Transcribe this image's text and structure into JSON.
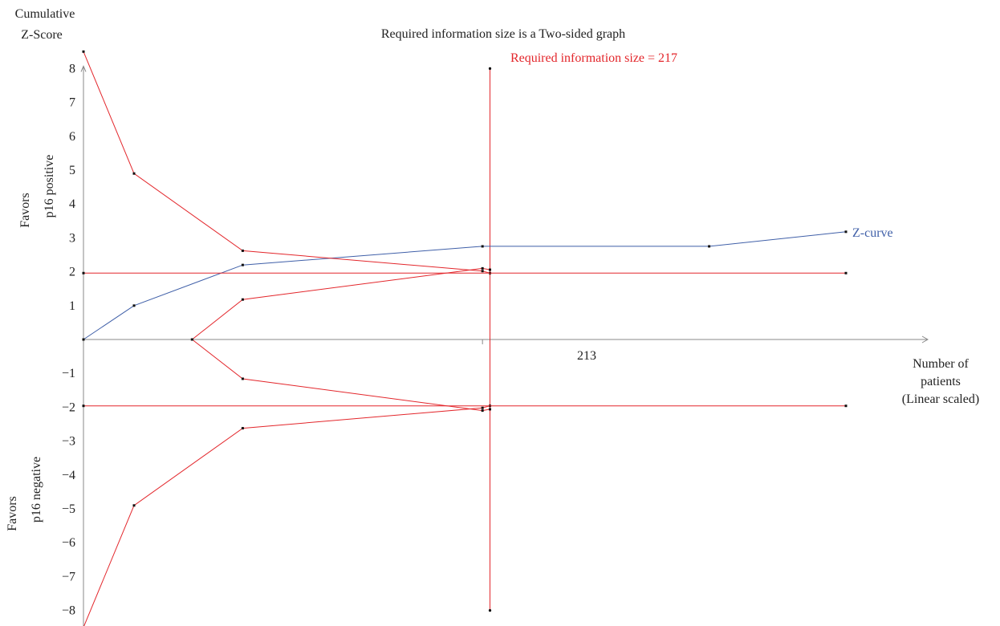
{
  "chart_data": {
    "type": "line",
    "title": "Required information size is a Two-sided graph",
    "ylabel_line1": "Cumulative",
    "ylabel_line2": "Z-Score",
    "xlabel_line1": "Number of",
    "xlabel_line2": "patients",
    "xlabel_line3": "(Linear scaled)",
    "favors_positive_line1": "Favors",
    "favors_positive_line2": "p16 positive",
    "favors_negative_line1": "Favors",
    "favors_negative_line2": "p16 negative",
    "ris_label": "Required information size = 217",
    "ris_value": 217,
    "x_tick_label": "213",
    "x_tick_value": 213,
    "ylim": [
      -8,
      8
    ],
    "y_ticks": [
      8,
      7,
      6,
      5,
      4,
      3,
      2,
      1,
      -1,
      -2,
      -3,
      -4,
      -5,
      -6,
      -7,
      -8
    ],
    "y_tick_labels": [
      "8",
      "7",
      "6",
      "5",
      "4",
      "3",
      "2",
      "1",
      "−1",
      "−2",
      "−3",
      "−4",
      "−5",
      "−6",
      "−7",
      "−8"
    ],
    "colors": {
      "boundary": "#e3262b",
      "zcurve": "#3f5fa8",
      "axis": "#888888"
    },
    "series": [
      {
        "name": "Z-curve",
        "color": "#3f5fa8",
        "points": [
          [
            0,
            0
          ],
          [
            27,
            1.0
          ],
          [
            85,
            2.2
          ],
          [
            213,
            2.75
          ],
          [
            334,
            2.75
          ],
          [
            407,
            3.18
          ]
        ]
      },
      {
        "color": "#e3262b",
        "points": [
          [
            0,
            8.5
          ],
          [
            27,
            4.9
          ],
          [
            85,
            2.62
          ],
          [
            213,
            2.02
          ],
          [
            217,
            1.96
          ]
        ]
      },
      {
        "color": "#e3262b",
        "points": [
          [
            0,
            -8.5
          ],
          [
            27,
            -4.9
          ],
          [
            85,
            -2.62
          ],
          [
            213,
            -2.02
          ],
          [
            217,
            -1.96
          ]
        ]
      },
      {
        "color": "#e3262b",
        "points": [
          [
            58,
            0
          ],
          [
            85,
            1.18
          ],
          [
            213,
            2.1
          ],
          [
            217,
            2.06
          ]
        ]
      },
      {
        "color": "#e3262b",
        "points": [
          [
            58,
            0
          ],
          [
            85,
            -1.16
          ],
          [
            213,
            -2.1
          ],
          [
            217,
            -2.06
          ]
        ]
      },
      {
        "color": "#e3262b",
        "points": [
          [
            0,
            1.96
          ],
          [
            407,
            1.96
          ]
        ]
      },
      {
        "color": "#e3262b",
        "points": [
          [
            0,
            -1.96
          ],
          [
            407,
            -1.96
          ]
        ]
      }
    ]
  }
}
